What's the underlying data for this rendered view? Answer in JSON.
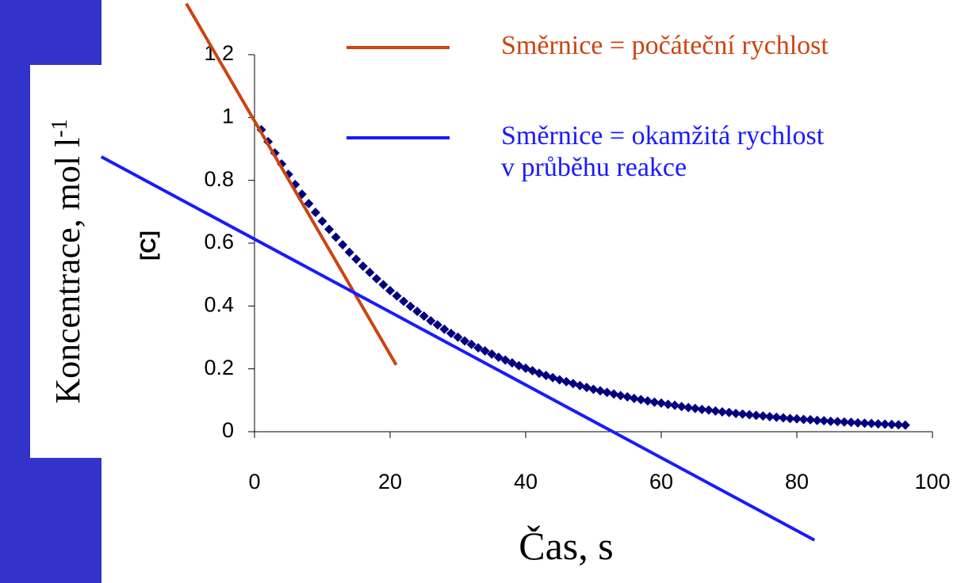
{
  "chart_data": {
    "type": "scatter",
    "xlabel": "Čas, s",
    "ylabel": "[C]",
    "ylabel_outer": "Koncentrace, mol l",
    "ylabel_outer_sup": "-1",
    "xlim": [
      0,
      100
    ],
    "ylim": [
      0,
      1.2
    ],
    "xticks": [
      0,
      20,
      40,
      60,
      80,
      100
    ],
    "yticks": [
      0,
      0.2,
      0.4,
      0.6,
      0.8,
      1,
      1.2
    ],
    "series": [
      {
        "type": "scatter",
        "color": "#000080",
        "x": [
          1,
          2,
          3,
          4,
          5,
          6,
          7,
          8,
          9,
          10,
          11,
          12,
          13,
          14,
          15,
          16,
          17,
          18,
          19,
          20,
          21,
          22,
          23,
          24,
          25,
          26,
          27,
          28,
          29,
          30,
          31,
          32,
          33,
          34,
          35,
          36,
          37,
          38,
          39,
          40,
          41,
          42,
          43,
          44,
          45,
          46,
          47,
          48,
          49,
          50,
          51,
          52,
          53,
          54,
          55,
          56,
          57,
          58,
          59,
          60,
          61,
          62,
          63,
          64,
          65,
          66,
          67,
          68,
          69,
          70,
          71,
          72,
          73,
          74,
          75,
          76,
          77,
          78,
          79,
          80,
          81,
          82,
          83,
          84,
          85,
          86,
          87,
          88,
          89,
          90,
          91,
          92,
          93,
          94,
          95,
          96
        ],
        "values": [
          0.961,
          0.923,
          0.887,
          0.852,
          0.819,
          0.787,
          0.756,
          0.726,
          0.698,
          0.67,
          0.644,
          0.619,
          0.595,
          0.571,
          0.549,
          0.527,
          0.507,
          0.487,
          0.468,
          0.449,
          0.432,
          0.415,
          0.399,
          0.383,
          0.368,
          0.353,
          0.34,
          0.326,
          0.313,
          0.301,
          0.289,
          0.278,
          0.267,
          0.257,
          0.247,
          0.237,
          0.228,
          0.219,
          0.21,
          0.202,
          0.194,
          0.186,
          0.179,
          0.172,
          0.165,
          0.159,
          0.153,
          0.147,
          0.141,
          0.135,
          0.13,
          0.125,
          0.12,
          0.115,
          0.111,
          0.106,
          0.102,
          0.098,
          0.094,
          0.091,
          0.087,
          0.084,
          0.08,
          0.077,
          0.074,
          0.071,
          0.069,
          0.066,
          0.063,
          0.061,
          0.058,
          0.056,
          0.054,
          0.052,
          0.05,
          0.048,
          0.046,
          0.044,
          0.042,
          0.041,
          0.039,
          0.038,
          0.036,
          0.035,
          0.033,
          0.032,
          0.031,
          0.03,
          0.028,
          0.027,
          0.026,
          0.025,
          0.024,
          0.023,
          0.022,
          0.021
        ]
      },
      {
        "type": "line",
        "name": "Směrnice = počáteční rychlost",
        "color": "#cc4411",
        "x": [
          -10.06,
          20.9
        ],
        "values": [
          1.3625,
          0.2125
        ]
      },
      {
        "type": "line",
        "name": "Směrnice = okamžitá rychlost\nv průběhu reakce",
        "color": "#1a1aff",
        "x": [
          -22.6,
          82.6
        ],
        "values": [
          0.875,
          -0.345
        ]
      }
    ]
  }
}
